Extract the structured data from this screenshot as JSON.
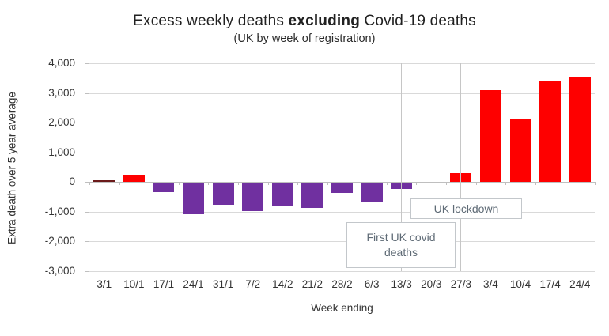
{
  "title": {
    "prefix": "Excess weekly deaths ",
    "bold": "excluding",
    "suffix": " Covid-19 deaths",
    "subtitle": "(UK by week of registration)"
  },
  "chart_data": {
    "type": "bar",
    "title": "Excess weekly deaths excluding Covid-19 deaths",
    "subtitle": "(UK by week of registration)",
    "xlabel": "Week ending",
    "ylabel": "Extra death over 5 year average",
    "ylim": [
      -3000,
      4000
    ],
    "ytick_step": 1000,
    "grid": true,
    "categories": [
      "3/1",
      "10/1",
      "17/1",
      "24/1",
      "31/1",
      "7/2",
      "14/2",
      "21/2",
      "28/2",
      "6/3",
      "13/3",
      "20/3",
      "27/3",
      "3/4",
      "10/4",
      "17/4",
      "24/4"
    ],
    "values": [
      50,
      250,
      -300,
      -1050,
      -750,
      -950,
      -800,
      -850,
      -330,
      -650,
      -200,
      0,
      300,
      3100,
      2150,
      3380,
      3520
    ],
    "bar_colors": [
      "#6b1a1a",
      "#fe0000",
      "#7030a0",
      "#7030a0",
      "#7030a0",
      "#7030a0",
      "#7030a0",
      "#7030a0",
      "#7030a0",
      "#7030a0",
      "#7030a0",
      "#7030a0",
      "#fe0000",
      "#fe0000",
      "#fe0000",
      "#fe0000",
      "#fe0000"
    ],
    "annotations": [
      {
        "label": "First UK covid deaths",
        "line_at_category": "13/3"
      },
      {
        "label": "UK lockdown",
        "line_at_category": "27/3"
      }
    ]
  },
  "colors": {
    "positive_bar": "#fe0000",
    "negative_bar": "#7030a0",
    "tiny_bar_dark_red": "#6b1a1a",
    "gridline": "#d9d9d9",
    "axis_line": "#bfbfbf",
    "annotation_text": "#5f6b76",
    "annotation_border": "#c3c7cb",
    "text": "#333333"
  }
}
